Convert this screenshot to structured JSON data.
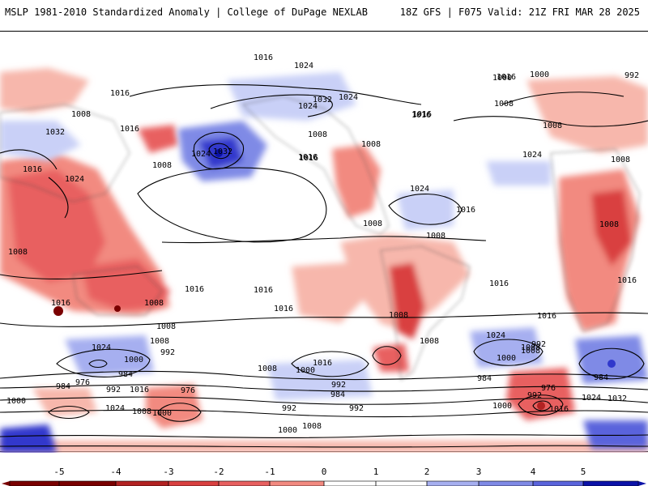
{
  "header": {
    "left": "MSLP 1981-2010 Standardized Anomaly | College of DuPage NEXLAB",
    "right": "18Z GFS | F075 Valid: 21Z FRI MAR 28 2025"
  },
  "colorbar": {
    "ticks": [
      "-5",
      "-4",
      "-3",
      "-2",
      "-1",
      "0",
      "1",
      "2",
      "3",
      "4",
      "5"
    ],
    "colors_negative": [
      "#7a0000",
      "#b22222",
      "#d94040",
      "#e86060",
      "#f28a80",
      "#f7b7ac"
    ],
    "colors_positive": [
      "#c9d0f7",
      "#a6aff0",
      "#7f8ae6",
      "#5a64dc",
      "#3038cc",
      "#0b12a8"
    ],
    "neutral": "#ffffff"
  },
  "isobar_labels": [
    {
      "text": "1016"
    },
    {
      "text": "1024"
    },
    {
      "text": "1032"
    },
    {
      "text": "1024"
    },
    {
      "text": "1016"
    },
    {
      "text": "1008"
    },
    {
      "text": "1016"
    },
    {
      "text": "1032"
    },
    {
      "text": "1024"
    },
    {
      "text": "1024"
    },
    {
      "text": "1008"
    },
    {
      "text": "1016"
    },
    {
      "text": "1032"
    },
    {
      "text": "1016"
    },
    {
      "text": "1024"
    },
    {
      "text": "1008"
    },
    {
      "text": "1008"
    },
    {
      "text": "1016"
    },
    {
      "text": "1016"
    },
    {
      "text": "1024"
    },
    {
      "text": "1016"
    },
    {
      "text": "1008"
    },
    {
      "text": "1008"
    },
    {
      "text": "1008"
    },
    {
      "text": "1016"
    },
    {
      "text": "1016"
    },
    {
      "text": "1008"
    },
    {
      "text": "1016"
    },
    {
      "text": "1016"
    },
    {
      "text": "1024"
    },
    {
      "text": "1008"
    },
    {
      "text": "1008"
    },
    {
      "text": "1000"
    },
    {
      "text": "992"
    },
    {
      "text": "984"
    },
    {
      "text": "976"
    },
    {
      "text": "984"
    },
    {
      "text": "992"
    },
    {
      "text": "1016"
    },
    {
      "text": "976"
    },
    {
      "text": "1000"
    },
    {
      "text": "1024"
    },
    {
      "text": "1008"
    },
    {
      "text": "1000"
    },
    {
      "text": "1008"
    },
    {
      "text": "1016"
    },
    {
      "text": "1008"
    },
    {
      "text": "1000"
    },
    {
      "text": "992"
    },
    {
      "text": "984"
    },
    {
      "text": "992"
    },
    {
      "text": "992"
    },
    {
      "text": "1008"
    },
    {
      "text": "1008"
    },
    {
      "text": "1024"
    },
    {
      "text": "1016"
    },
    {
      "text": "1008"
    },
    {
      "text": "1016"
    },
    {
      "text": "992"
    },
    {
      "text": "1000"
    },
    {
      "text": "984"
    },
    {
      "text": "976"
    },
    {
      "text": "984"
    },
    {
      "text": "1000"
    },
    {
      "text": "1016"
    },
    {
      "text": "1024"
    },
    {
      "text": "1032"
    },
    {
      "text": "992"
    },
    {
      "text": "1000"
    },
    {
      "text": "1008"
    },
    {
      "text": "1016"
    },
    {
      "text": "1008"
    },
    {
      "text": "1016"
    },
    {
      "text": "1024"
    },
    {
      "text": "1008"
    },
    {
      "text": "1000"
    },
    {
      "text": "1008"
    },
    {
      "text": "992"
    },
    {
      "text": "1000"
    },
    {
      "text": "1016"
    },
    {
      "text": "1008"
    }
  ]
}
